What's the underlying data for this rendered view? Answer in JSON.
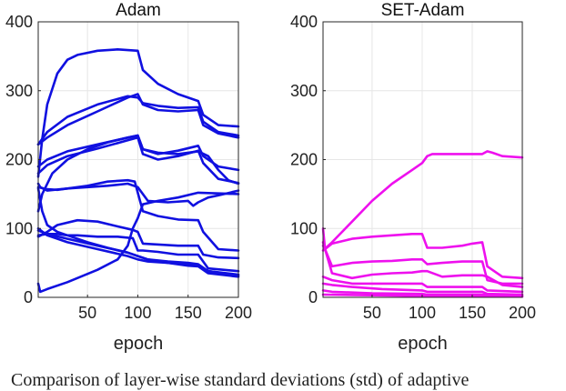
{
  "chart_data": [
    {
      "type": "line",
      "title": "Adam",
      "xlabel": "epoch",
      "ylabel": "",
      "xlim": [
        1,
        200
      ],
      "ylim": [
        0,
        400
      ],
      "xticks": [
        50,
        100,
        150,
        200
      ],
      "yticks": [
        0,
        100,
        200,
        300,
        400
      ],
      "grid": true,
      "color": "#1010e0",
      "series": [
        {
          "x": [
            1,
            5,
            10,
            20,
            30,
            40,
            60,
            80,
            100,
            105,
            120,
            140,
            160,
            165,
            180,
            200
          ],
          "y": [
            175,
            230,
            280,
            325,
            345,
            352,
            358,
            360,
            358,
            330,
            310,
            295,
            285,
            265,
            250,
            248
          ]
        },
        {
          "x": [
            1,
            10,
            30,
            60,
            90,
            100,
            105,
            120,
            140,
            160,
            165,
            180,
            200
          ],
          "y": [
            222,
            232,
            250,
            270,
            290,
            295,
            280,
            272,
            270,
            272,
            250,
            238,
            232
          ]
        },
        {
          "x": [
            1,
            10,
            30,
            60,
            90,
            100,
            105,
            120,
            140,
            160,
            165,
            180,
            200
          ],
          "y": [
            222,
            240,
            262,
            280,
            292,
            290,
            282,
            278,
            275,
            276,
            255,
            240,
            235
          ]
        },
        {
          "x": [
            1,
            10,
            30,
            60,
            90,
            100,
            105,
            120,
            140,
            160,
            165,
            180,
            200
          ],
          "y": [
            190,
            200,
            212,
            222,
            232,
            235,
            215,
            208,
            213,
            220,
            205,
            190,
            185
          ]
        },
        {
          "x": [
            1,
            10,
            30,
            60,
            90,
            100,
            105,
            120,
            140,
            160,
            165,
            180,
            200
          ],
          "y": [
            180,
            192,
            205,
            216,
            228,
            232,
            208,
            200,
            205,
            213,
            195,
            172,
            166
          ]
        },
        {
          "x": [
            1,
            3,
            10,
            30,
            50,
            70,
            90,
            97,
            100,
            105,
            120,
            140,
            160,
            165,
            180,
            200
          ],
          "y": [
            165,
            160,
            155,
            158,
            162,
            168,
            170,
            168,
            152,
            125,
            118,
            113,
            112,
            95,
            70,
            68
          ]
        },
        {
          "x": [
            1,
            5,
            15,
            30,
            50,
            70,
            90,
            100,
            105,
            120,
            140,
            150,
            160,
            170,
            180,
            190,
            200
          ],
          "y": [
            125,
            150,
            180,
            200,
            215,
            225,
            232,
            235,
            215,
            210,
            208,
            210,
            212,
            205,
            185,
            170,
            165
          ]
        },
        {
          "x": [
            1,
            10,
            20,
            30,
            50,
            70,
            90,
            100,
            110,
            130,
            150,
            155,
            160,
            170,
            180,
            200
          ],
          "y": [
            160,
            157,
            156,
            158,
            160,
            162,
            165,
            160,
            140,
            138,
            140,
            133,
            138,
            145,
            148,
            155
          ]
        },
        {
          "x": [
            1,
            10,
            20,
            40,
            60,
            80,
            95,
            100,
            105,
            140,
            160,
            165,
            180,
            200
          ],
          "y": [
            88,
            95,
            105,
            112,
            110,
            103,
            98,
            95,
            78,
            75,
            75,
            62,
            58,
            57
          ]
        },
        {
          "x": [
            1,
            10,
            20,
            30,
            40,
            60,
            80,
            95,
            100,
            105,
            120,
            140,
            160,
            170,
            200
          ],
          "y": [
            90,
            92,
            92,
            90,
            90,
            88,
            88,
            86,
            68,
            68,
            66,
            62,
            62,
            42,
            38
          ]
        },
        {
          "x": [
            1,
            5,
            10,
            20,
            30,
            50,
            70,
            90,
            100,
            110,
            130,
            150,
            160,
            170,
            200
          ],
          "y": [
            158,
            125,
            105,
            95,
            90,
            80,
            72,
            65,
            60,
            55,
            52,
            50,
            48,
            38,
            33
          ]
        },
        {
          "x": [
            1,
            10,
            30,
            60,
            90,
            100,
            110,
            130,
            150,
            160,
            170,
            200
          ],
          "y": [
            97,
            92,
            85,
            75,
            65,
            60,
            55,
            50,
            48,
            46,
            38,
            32
          ]
        },
        {
          "x": [
            1,
            10,
            30,
            60,
            90,
            100,
            110,
            130,
            150,
            160,
            170,
            200
          ],
          "y": [
            100,
            90,
            80,
            70,
            60,
            55,
            52,
            50,
            46,
            45,
            35,
            30
          ]
        },
        {
          "x": [
            1,
            3,
            10,
            30,
            60,
            80,
            90,
            95,
            100,
            105,
            120,
            140,
            160,
            200
          ],
          "y": [
            20,
            8,
            12,
            22,
            40,
            55,
            75,
            100,
            115,
            135,
            140,
            145,
            152,
            150
          ]
        }
      ]
    },
    {
      "type": "line",
      "title": "SET-Adam",
      "xlabel": "epoch",
      "ylabel": "",
      "xlim": [
        1,
        200
      ],
      "ylim": [
        0,
        400
      ],
      "xticks": [
        50,
        100,
        150,
        200
      ],
      "yticks": [
        0,
        100,
        200,
        300,
        400
      ],
      "grid": true,
      "color": "#ee10ee",
      "series": [
        {
          "x": [
            1,
            10,
            30,
            50,
            70,
            90,
            100,
            105,
            110,
            130,
            150,
            160,
            165,
            170,
            180,
            200
          ],
          "y": [
            68,
            80,
            110,
            140,
            165,
            185,
            195,
            205,
            208,
            208,
            208,
            208,
            212,
            210,
            205,
            203
          ]
        },
        {
          "x": [
            1,
            3,
            10,
            30,
            50,
            70,
            90,
            100,
            105,
            120,
            140,
            150,
            160,
            165,
            180,
            200
          ],
          "y": [
            75,
            70,
            78,
            85,
            88,
            90,
            92,
            92,
            72,
            72,
            75,
            78,
            80,
            45,
            30,
            28
          ]
        },
        {
          "x": [
            1,
            3,
            10,
            30,
            50,
            70,
            90,
            100,
            105,
            120,
            140,
            160,
            165,
            180,
            200
          ],
          "y": [
            100,
            70,
            45,
            50,
            52,
            53,
            55,
            55,
            48,
            50,
            52,
            52,
            25,
            20,
            20
          ]
        },
        {
          "x": [
            1,
            10,
            30,
            50,
            70,
            90,
            100,
            105,
            120,
            140,
            160,
            165,
            180,
            200
          ],
          "y": [
            80,
            35,
            28,
            33,
            35,
            36,
            38,
            38,
            30,
            32,
            32,
            30,
            18,
            15
          ]
        },
        {
          "x": [
            1,
            10,
            30,
            60,
            100,
            105,
            160,
            165,
            200
          ],
          "y": [
            30,
            25,
            20,
            20,
            20,
            15,
            15,
            10,
            8
          ]
        },
        {
          "x": [
            1,
            10,
            30,
            60,
            100,
            105,
            160,
            165,
            200
          ],
          "y": [
            20,
            18,
            15,
            12,
            10,
            8,
            8,
            5,
            4
          ]
        },
        {
          "x": [
            1,
            10,
            50,
            100,
            105,
            160,
            165,
            200
          ],
          "y": [
            10,
            8,
            6,
            5,
            4,
            4,
            3,
            2
          ]
        },
        {
          "x": [
            1,
            50,
            100,
            160,
            200
          ],
          "y": [
            4,
            3,
            2,
            2,
            1
          ]
        }
      ]
    }
  ],
  "caption": "Comparison of layer-wise standard deviations (std) of adaptive"
}
